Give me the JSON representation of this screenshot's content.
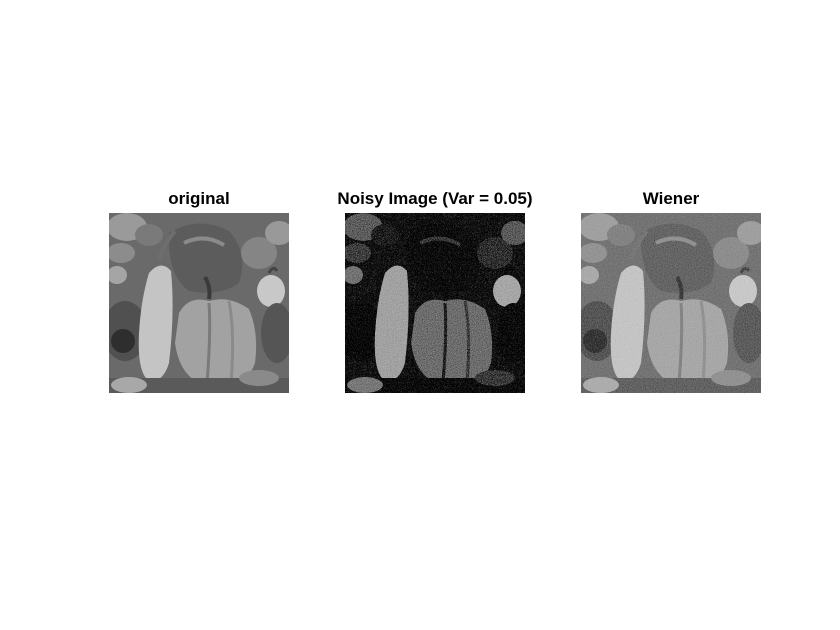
{
  "figure": {
    "panels": [
      {
        "title": "original"
      },
      {
        "title": "Noisy Image (Var = 0.05)"
      },
      {
        "title": "Wiener"
      }
    ]
  }
}
